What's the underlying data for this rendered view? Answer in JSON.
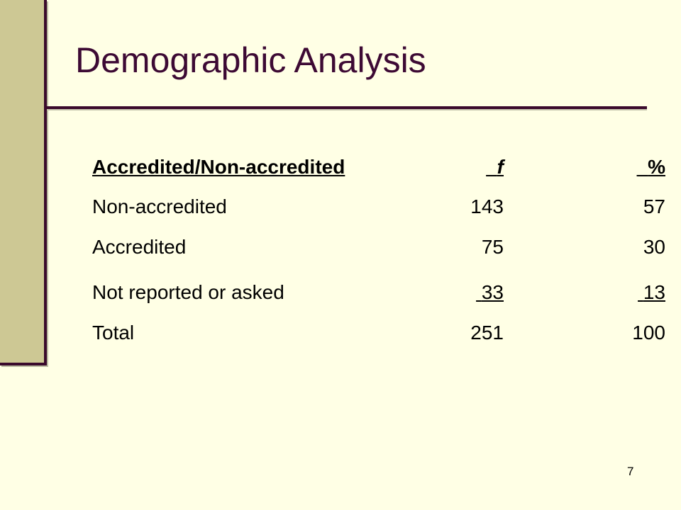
{
  "slide": {
    "title": "Demographic Analysis",
    "page_number": "7"
  },
  "table": {
    "headers": [
      "Accredited/Non-accredited",
      "f",
      "%"
    ],
    "rows": [
      {
        "label": "Non-accredited",
        "f": "143",
        "pct": "57"
      },
      {
        "label": "Accredited",
        "f": "75",
        "pct": "30"
      },
      {
        "label": "Not reported or asked",
        "f": "33",
        "pct": "13"
      },
      {
        "label": "Total",
        "f": "251",
        "pct": "100"
      }
    ]
  }
}
